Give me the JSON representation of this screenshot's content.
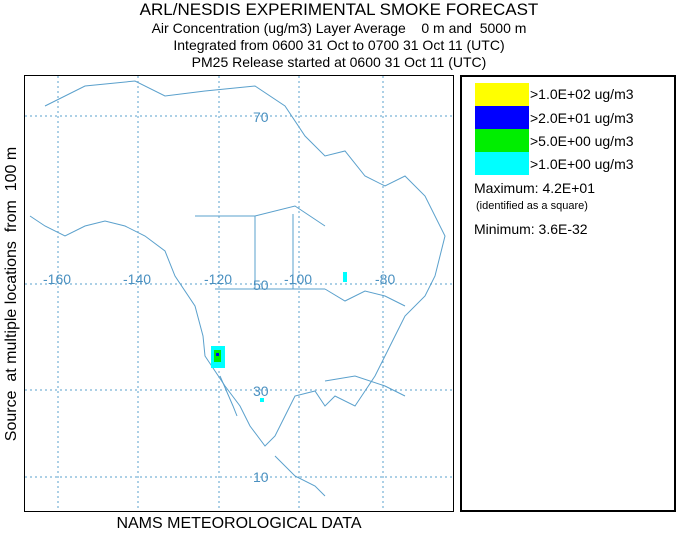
{
  "header": {
    "title": "ARL/NESDIS EXPERIMENTAL SMOKE FORECAST",
    "line1": "Air Concentration (ug/m3) Layer Average    0 m and  5000 m",
    "line2": "Integrated from 0600 31 Oct to 0700 31 Oct 11 (UTC)",
    "line3": "PM25 Release started at 0600 31 Oct 11 (UTC)"
  },
  "side_label": "Source  at multiple locations  from  100 m",
  "footer": "NAMS METEOROLOGICAL DATA",
  "map": {
    "lat_labels": [
      "70",
      "50",
      "30",
      "10"
    ],
    "lon_labels": [
      "-160",
      "-140",
      "-120",
      "-100",
      "-80"
    ],
    "line_color": "#5aa0cc"
  },
  "legend": {
    "levels": [
      {
        "label": ">1.0E+02 ug/m3",
        "color": "#ffff00"
      },
      {
        "label": ">2.0E+01 ug/m3",
        "color": "#0000ff"
      },
      {
        "label": ">5.0E+00 ug/m3",
        "color": "#00ee00"
      },
      {
        "label": ">1.0E+00 ug/m3",
        "color": "#00ffff"
      }
    ],
    "maximum": "Maximum: 4.2E+01",
    "max_note": "(identified as a square)",
    "minimum": "Minimum: 3.6E-32"
  }
}
